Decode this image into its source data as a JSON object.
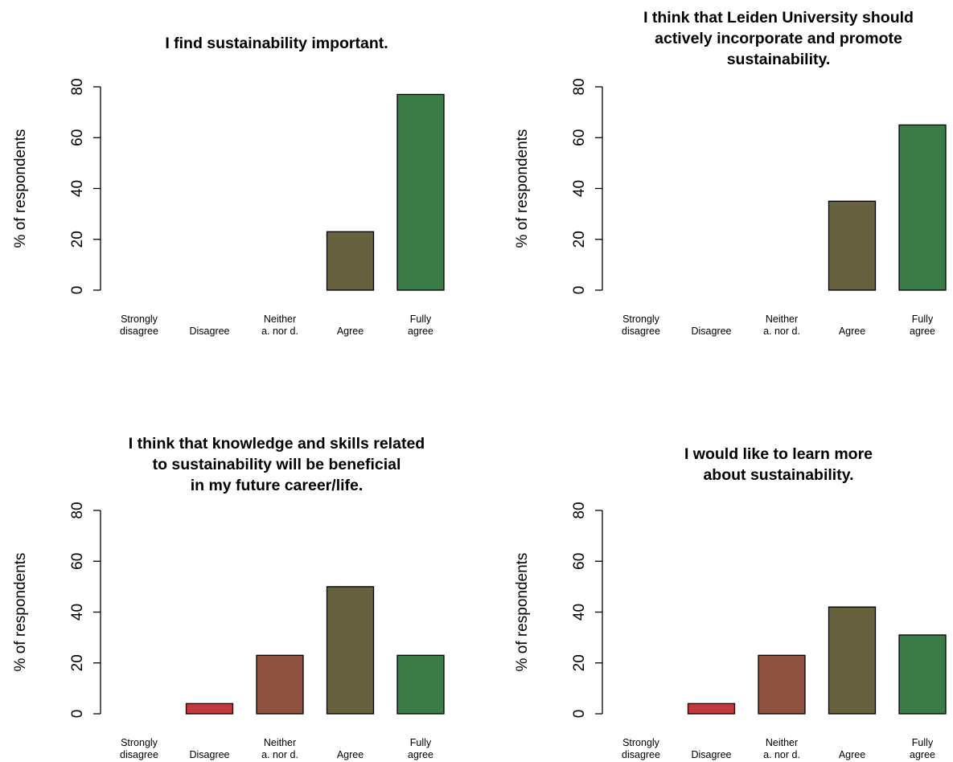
{
  "chart_data": [
    {
      "type": "bar",
      "title": [
        "I find sustainability important."
      ],
      "ylabel": "% of respondents",
      "ylim": [
        0,
        80
      ],
      "yticks": [
        "0",
        "20",
        "40",
        "60",
        "80"
      ],
      "categories": [
        [
          "Strongly",
          "disagree"
        ],
        [
          "Disagree"
        ],
        [
          "Neither",
          "a. nor d."
        ],
        [
          "Agree"
        ],
        [
          "Fully",
          "agree"
        ]
      ],
      "values": [
        0,
        0,
        0,
        23,
        77
      ],
      "colors": [
        "#C0393D",
        "#C0393D",
        "#8F5240",
        "#66623F",
        "#3B7B45"
      ],
      "grid": false
    },
    {
      "type": "bar",
      "title": [
        "I think that Leiden University should",
        "actively incorporate and promote",
        "sustainability."
      ],
      "ylabel": "% of respondents",
      "ylim": [
        0,
        80
      ],
      "yticks": [
        "0",
        "20",
        "40",
        "60",
        "80"
      ],
      "categories": [
        [
          "Strongly",
          "disagree"
        ],
        [
          "Disagree"
        ],
        [
          "Neither",
          "a. nor d."
        ],
        [
          "Agree"
        ],
        [
          "Fully",
          "agree"
        ]
      ],
      "values": [
        0,
        0,
        0,
        35,
        65
      ],
      "colors": [
        "#C0393D",
        "#C0393D",
        "#8F5240",
        "#66623F",
        "#3B7B45"
      ],
      "grid": false
    },
    {
      "type": "bar",
      "title": [
        "I think that knowledge and skills related",
        "to sustainability will be beneficial",
        "in my future career/life."
      ],
      "ylabel": "% of respondents",
      "ylim": [
        0,
        80
      ],
      "yticks": [
        "0",
        "20",
        "40",
        "60",
        "80"
      ],
      "categories": [
        [
          "Strongly",
          "disagree"
        ],
        [
          "Disagree"
        ],
        [
          "Neither",
          "a. nor d."
        ],
        [
          "Agree"
        ],
        [
          "Fully",
          "agree"
        ]
      ],
      "values": [
        0,
        4,
        23,
        50,
        23
      ],
      "colors": [
        "#C0393D",
        "#C0393D",
        "#8F5240",
        "#66623F",
        "#3B7B45"
      ],
      "grid": false
    },
    {
      "type": "bar",
      "title": [
        "I would like to learn more",
        "about sustainability."
      ],
      "ylabel": "% of respondents",
      "ylim": [
        0,
        80
      ],
      "yticks": [
        "0",
        "20",
        "40",
        "60",
        "80"
      ],
      "categories": [
        [
          "Strongly",
          "disagree"
        ],
        [
          "Disagree"
        ],
        [
          "Neither",
          "a. nor d."
        ],
        [
          "Agree"
        ],
        [
          "Fully",
          "agree"
        ]
      ],
      "values": [
        0,
        4,
        23,
        42,
        31
      ],
      "colors": [
        "#C0393D",
        "#C0393D",
        "#8F5240",
        "#66623F",
        "#3B7B45"
      ],
      "grid": false
    }
  ]
}
